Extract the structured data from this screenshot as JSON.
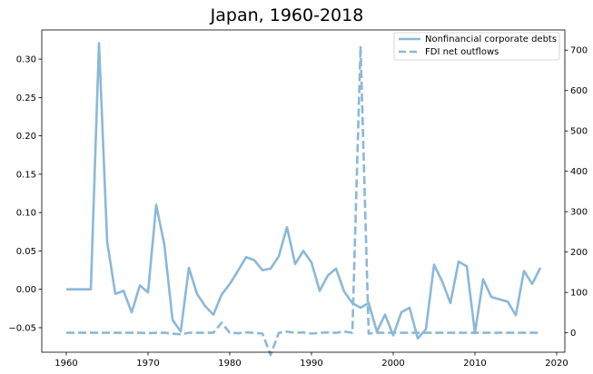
{
  "chart_data": {
    "type": "line",
    "title": "Japan, 1960-2018",
    "xlabel": "",
    "ylabel": "",
    "xlim": [
      1957,
      2021
    ],
    "ylim": [
      -0.082,
      0.338
    ],
    "y2lim": [
      -48,
      750
    ],
    "x_ticks": [
      1960,
      1970,
      1980,
      1990,
      2000,
      2010,
      2020
    ],
    "y_ticks": [
      -0.05,
      0.0,
      0.05,
      0.1,
      0.15,
      0.2,
      0.25,
      0.3
    ],
    "y_tick_labels": [
      "−0.05",
      "0.00",
      "0.05",
      "0.10",
      "0.15",
      "0.20",
      "0.25",
      "0.30"
    ],
    "y2_ticks": [
      0,
      100,
      200,
      300,
      400,
      500,
      600,
      700
    ],
    "legend_position": "top-right",
    "grid": false,
    "color": "#8bb8d8",
    "series": [
      {
        "name": "Nonfinancial corporate debts",
        "axis": "left",
        "style": "solid",
        "x": [
          1960,
          1961,
          1962,
          1963,
          1964,
          1965,
          1966,
          1967,
          1968,
          1969,
          1970,
          1971,
          1972,
          1973,
          1974,
          1975,
          1976,
          1977,
          1978,
          1979,
          1980,
          1981,
          1982,
          1983,
          1984,
          1985,
          1986,
          1987,
          1988,
          1989,
          1990,
          1991,
          1992,
          1993,
          1994,
          1995,
          1996,
          1997,
          1998,
          1999,
          2000,
          2001,
          2002,
          2003,
          2004,
          2005,
          2006,
          2007,
          2008,
          2009,
          2010,
          2011,
          2012,
          2013,
          2014,
          2015,
          2016,
          2017,
          2018
        ],
        "values": [
          0.0,
          0.0,
          0.0,
          0.0,
          0.321,
          0.062,
          -0.006,
          -0.002,
          -0.03,
          0.005,
          -0.004,
          0.11,
          0.058,
          -0.04,
          -0.055,
          0.028,
          -0.006,
          -0.022,
          -0.033,
          -0.007,
          0.007,
          0.024,
          0.042,
          0.038,
          0.025,
          0.027,
          0.043,
          0.081,
          0.033,
          0.05,
          0.035,
          -0.002,
          0.018,
          0.027,
          -0.003,
          -0.018,
          -0.024,
          -0.018,
          -0.055,
          -0.033,
          -0.06,
          -0.03,
          -0.024,
          -0.064,
          -0.052,
          0.032,
          0.01,
          -0.018,
          0.036,
          0.03,
          -0.057,
          0.013,
          -0.01,
          -0.013,
          -0.016,
          -0.034,
          0.024,
          0.007,
          0.028
        ]
      },
      {
        "name": "FDI net outflows",
        "axis": "right",
        "style": "dashed",
        "x": [
          1960,
          1961,
          1962,
          1963,
          1964,
          1965,
          1966,
          1967,
          1968,
          1969,
          1970,
          1971,
          1972,
          1973,
          1974,
          1975,
          1976,
          1977,
          1978,
          1979,
          1980,
          1981,
          1982,
          1983,
          1984,
          1985,
          1986,
          1987,
          1988,
          1989,
          1990,
          1991,
          1992,
          1993,
          1994,
          1995,
          1996,
          1997,
          1998,
          1999,
          2000,
          2001,
          2002,
          2003,
          2004,
          2005,
          2006,
          2007,
          2008,
          2009,
          2010,
          2011,
          2012,
          2013,
          2014,
          2015,
          2016,
          2017,
          2018
        ],
        "values": [
          0,
          0,
          0,
          0,
          0,
          0,
          0,
          0,
          0,
          0,
          -1,
          0,
          0,
          -2,
          -4,
          0,
          0,
          0,
          0,
          25,
          0,
          -1,
          1,
          0,
          -2,
          -55,
          0,
          3,
          0,
          1,
          -2,
          0,
          1,
          0,
          3,
          0,
          710,
          -2,
          0,
          0,
          0,
          0,
          0,
          0,
          0,
          0,
          0,
          0,
          0,
          0,
          0,
          0,
          0,
          0,
          0,
          0,
          0,
          0,
          0
        ]
      }
    ]
  }
}
